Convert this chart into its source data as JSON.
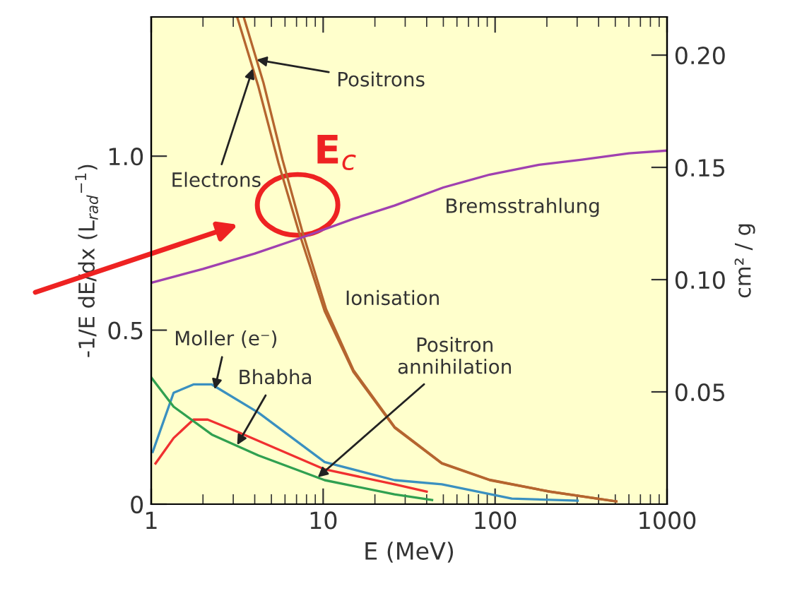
{
  "chart_data": {
    "type": "line",
    "xlabel": "E (MeV)",
    "ylabel": "-1/E dE/dx (L$_{rad}$$^{−1}$)",
    "y2label": "cm² / g",
    "log": "x",
    "xlim": [
      1,
      1000
    ],
    "xticks": [
      1,
      10,
      100,
      1000
    ],
    "ylim": [
      0,
      1.4
    ],
    "yticks": [
      0,
      0.5,
      {
        "value": 1.0,
        "label": "1.0"
      }
    ],
    "y2lim": [
      0,
      0.217
    ],
    "y2ticks": [
      0.05,
      {
        "value": 0.1,
        "label": "0.10"
      },
      0.15,
      {
        "value": 0.2,
        "label": "0.20"
      }
    ],
    "grid": false,
    "marker": "none",
    "line_style": "solid",
    "series": [
      {
        "color": "#b5652f",
        "x": [
          3.16,
          4.2,
          5.5,
          7.25,
          10.2,
          15,
          26,
          49,
          93,
          208,
          507
        ],
        "values": [
          1.4,
          1.2,
          0.98,
          0.78,
          0.555,
          0.38,
          0.22,
          0.117,
          0.069,
          0.036,
          0.008
        ]
      },
      {
        "color": "#b5652f",
        "x": [
          3.45,
          4.5,
          5.8,
          7.5,
          10.4,
          15,
          26,
          49,
          93,
          208,
          507
        ],
        "values": [
          1.4,
          1.21,
          0.99,
          0.79,
          0.56,
          0.385,
          0.222,
          0.118,
          0.07,
          0.036,
          0.008
        ]
      },
      {
        "color": "#a040b0",
        "x": [
          1,
          2,
          4,
          7.4,
          15,
          26,
          50,
          93,
          180,
          320,
          600,
          1000
        ],
        "values": [
          0.636,
          0.676,
          0.72,
          0.765,
          0.82,
          0.858,
          0.91,
          0.947,
          0.975,
          0.99,
          1.008,
          1.016
        ]
      },
      {
        "color": "#3a90c0",
        "x": [
          1.02,
          1.35,
          1.76,
          2.25,
          4.2,
          10.2,
          26,
          49,
          125,
          302
        ],
        "values": [
          0.15,
          0.32,
          0.344,
          0.344,
          0.263,
          0.121,
          0.069,
          0.057,
          0.016,
          0.01
        ]
      },
      {
        "color": "#f03030",
        "x": [
          1.06,
          1.35,
          1.76,
          2.13,
          3.1,
          10.2,
          26,
          40
        ],
        "values": [
          0.117,
          0.19,
          0.243,
          0.243,
          0.21,
          0.1,
          0.057,
          0.036
        ]
      },
      {
        "color": "#30a050",
        "x": [
          1,
          1.35,
          2.25,
          4.2,
          10.2,
          26,
          43
        ],
        "values": [
          0.364,
          0.28,
          0.2,
          0.14,
          0.069,
          0.028,
          0.012
        ]
      }
    ],
    "annotations": [
      {
        "text": "Positrons",
        "x": 4.1,
        "y": 1.277
      },
      {
        "text": "Electrons",
        "x": 3.9,
        "y": 1.252
      },
      {
        "text": "E$_{c}$",
        "x": 7.1,
        "y": 0.86
      },
      {
        "text": "Moller (e⁻)",
        "x": 2.34,
        "y": 0.33
      },
      {
        "text": "Bhabha",
        "x": 3.16,
        "y": 0.17
      },
      {
        "text": "Positron\nannihilation",
        "x": 9.3,
        "y": 0.077
      },
      "Ionisation",
      "Bremsstrahlung"
    ]
  }
}
